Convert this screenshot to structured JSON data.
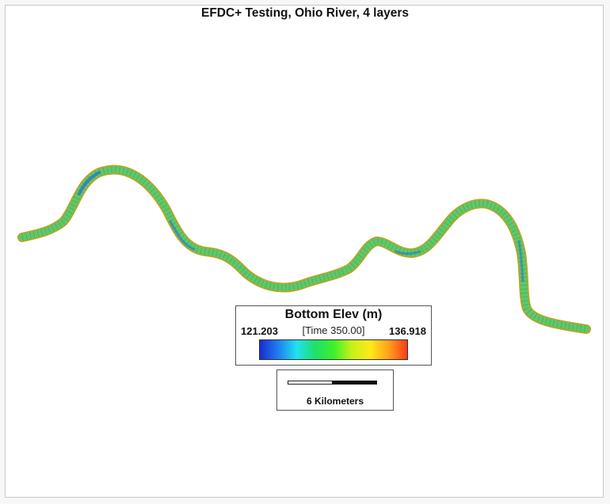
{
  "map": {
    "title": "EFDC+ Testing, Ohio River, 4 layers",
    "legend": {
      "title": "Bottom Elev (m)",
      "min": "121.203",
      "max": "136.918",
      "time": "[Time 350.00]",
      "colormap_stops": [
        "#1a2bd0",
        "#1f7ff0",
        "#22e0f0",
        "#1ee06a",
        "#3cf02c",
        "#c8f018",
        "#ffe81a",
        "#ffa01c",
        "#ff3a1a"
      ]
    },
    "scale_bar": {
      "label": "6 Kilometers"
    },
    "river": {
      "fill_color": "#5fc86a",
      "edge_color": "#c8a020",
      "highlight_color": "#2d6fd8"
    }
  }
}
